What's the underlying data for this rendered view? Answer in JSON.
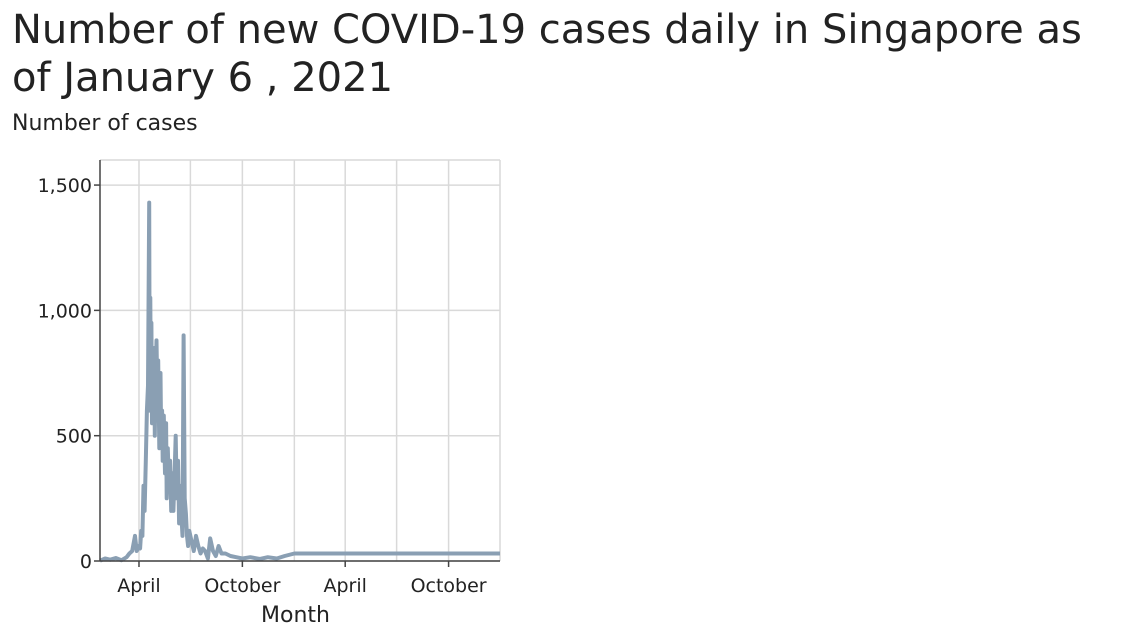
{
  "chart_data": {
    "type": "line",
    "title": "Number of new COVID-19 cases daily in Singapore as of January 6 , 2021",
    "ylabel": "Number of cases",
    "xlabel": "Month",
    "ylim": [
      0,
      1600
    ],
    "xlim": [
      "2020-01-23",
      "2021-12-31"
    ],
    "grid": true,
    "y_ticks": [
      {
        "value": 0,
        "label": "0"
      },
      {
        "value": 500,
        "label": "500"
      },
      {
        "value": 1000,
        "label": "1,000"
      },
      {
        "value": 1500,
        "label": "1,500"
      }
    ],
    "x_ticks": [
      {
        "date": "2020-04-01",
        "label": "April"
      },
      {
        "date": "2020-10-01",
        "label": "October"
      },
      {
        "date": "2021-04-01",
        "label": "April"
      },
      {
        "date": "2021-10-01",
        "label": "October"
      }
    ],
    "x_gridlines": [
      "2020-04-01",
      "2020-07-01",
      "2020-10-01",
      "2021-01-01",
      "2021-04-01",
      "2021-07-01",
      "2021-10-01"
    ],
    "series": [
      {
        "color": "#8a9fb3",
        "points": [
          [
            "2020-01-23",
            1
          ],
          [
            "2020-02-01",
            10
          ],
          [
            "2020-02-10",
            5
          ],
          [
            "2020-02-20",
            12
          ],
          [
            "2020-03-01",
            3
          ],
          [
            "2020-03-10",
            15
          ],
          [
            "2020-03-15",
            30
          ],
          [
            "2020-03-20",
            40
          ],
          [
            "2020-03-25",
            100
          ],
          [
            "2020-03-28",
            40
          ],
          [
            "2020-04-01",
            60
          ],
          [
            "2020-04-03",
            50
          ],
          [
            "2020-04-05",
            120
          ],
          [
            "2020-04-07",
            100
          ],
          [
            "2020-04-09",
            300
          ],
          [
            "2020-04-11",
            200
          ],
          [
            "2020-04-13",
            400
          ],
          [
            "2020-04-15",
            600
          ],
          [
            "2020-04-17",
            700
          ],
          [
            "2020-04-19",
            1430
          ],
          [
            "2020-04-20",
            600
          ],
          [
            "2020-04-21",
            1050
          ],
          [
            "2020-04-22",
            700
          ],
          [
            "2020-04-23",
            950
          ],
          [
            "2020-04-24",
            550
          ],
          [
            "2020-04-25",
            800
          ],
          [
            "2020-04-27",
            700
          ],
          [
            "2020-04-28",
            850
          ],
          [
            "2020-04-29",
            500
          ],
          [
            "2020-04-30",
            700
          ],
          [
            "2020-05-02",
            880
          ],
          [
            "2020-05-04",
            600
          ],
          [
            "2020-05-05",
            800
          ],
          [
            "2020-05-07",
            450
          ],
          [
            "2020-05-09",
            750
          ],
          [
            "2020-05-10",
            550
          ],
          [
            "2020-05-12",
            600
          ],
          [
            "2020-05-13",
            400
          ],
          [
            "2020-05-15",
            580
          ],
          [
            "2020-05-17",
            350
          ],
          [
            "2020-05-19",
            550
          ],
          [
            "2020-05-20",
            250
          ],
          [
            "2020-05-22",
            450
          ],
          [
            "2020-05-24",
            300
          ],
          [
            "2020-05-26",
            400
          ],
          [
            "2020-05-28",
            200
          ],
          [
            "2020-05-30",
            350
          ],
          [
            "2020-06-01",
            200
          ],
          [
            "2020-06-03",
            350
          ],
          [
            "2020-06-05",
            500
          ],
          [
            "2020-06-07",
            250
          ],
          [
            "2020-06-09",
            400
          ],
          [
            "2020-06-11",
            150
          ],
          [
            "2020-06-13",
            300
          ],
          [
            "2020-06-15",
            180
          ],
          [
            "2020-06-17",
            100
          ],
          [
            "2020-06-19",
            900
          ],
          [
            "2020-06-21",
            250
          ],
          [
            "2020-06-23",
            190
          ],
          [
            "2020-06-25",
            100
          ],
          [
            "2020-06-27",
            60
          ],
          [
            "2020-06-29",
            120
          ],
          [
            "2020-07-03",
            80
          ],
          [
            "2020-07-07",
            40
          ],
          [
            "2020-07-11",
            100
          ],
          [
            "2020-07-15",
            60
          ],
          [
            "2020-07-19",
            30
          ],
          [
            "2020-07-23",
            50
          ],
          [
            "2020-07-27",
            40
          ],
          [
            "2020-08-01",
            10
          ],
          [
            "2020-08-05",
            90
          ],
          [
            "2020-08-10",
            40
          ],
          [
            "2020-08-15",
            20
          ],
          [
            "2020-08-20",
            60
          ],
          [
            "2020-08-25",
            30
          ],
          [
            "2020-09-01",
            30
          ],
          [
            "2020-09-10",
            20
          ],
          [
            "2020-09-20",
            15
          ],
          [
            "2020-10-01",
            10
          ],
          [
            "2020-10-15",
            15
          ],
          [
            "2020-11-01",
            8
          ],
          [
            "2020-11-15",
            15
          ],
          [
            "2020-12-01",
            10
          ],
          [
            "2020-12-15",
            20
          ],
          [
            "2021-01-01",
            30
          ],
          [
            "2021-01-06",
            30
          ],
          [
            "2021-12-31",
            30
          ]
        ]
      }
    ]
  }
}
